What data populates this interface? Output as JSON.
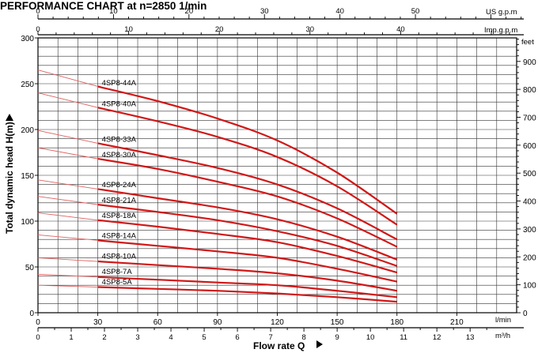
{
  "chart_data": {
    "type": "line",
    "title": "PERFORMANCE CHART at n=2850 1/min",
    "xlabel": "Flow rate Q",
    "ylabel": "Total dynamic head H(m)",
    "x_unit_primary": "l/min",
    "x_unit_secondary": "m³/h",
    "x_unit_top_us": "US g.p.m",
    "x_unit_top_imp": "Imp.g.p.m",
    "y_unit_right": "feet",
    "xlim": [
      0,
      240
    ],
    "ylim": [
      0,
      300
    ],
    "x_ticks_lmin": [
      0,
      30,
      60,
      90,
      120,
      150,
      180,
      210
    ],
    "x_ticks_m3h": [
      0,
      1,
      2,
      3,
      4,
      5,
      6,
      7,
      8,
      9,
      10,
      11,
      12,
      13
    ],
    "x_ticks_usgpm": [
      0,
      10,
      20,
      30,
      40,
      50
    ],
    "x_ticks_impgpm": [
      0,
      10,
      20,
      30,
      40
    ],
    "y_ticks_m": [
      0,
      50,
      100,
      150,
      200,
      250,
      300
    ],
    "y_ticks_feet": [
      0,
      100,
      200,
      300,
      400,
      500,
      600,
      700,
      800,
      900
    ],
    "grid": true,
    "series": [
      {
        "name": "4SP8-44A",
        "x": [
          0,
          30,
          60,
          90,
          120,
          150,
          180
        ],
        "y": [
          265,
          247,
          231,
          212,
          188,
          153,
          108
        ]
      },
      {
        "name": "4SP8-40A",
        "x": [
          0,
          30,
          60,
          90,
          120,
          150,
          180
        ],
        "y": [
          240,
          224,
          209,
          192,
          170,
          138,
          96
        ]
      },
      {
        "name": "4SP8-33A",
        "x": [
          0,
          30,
          60,
          90,
          120,
          150,
          180
        ],
        "y": [
          199,
          185,
          172,
          158,
          140,
          114,
          80
        ]
      },
      {
        "name": "4SP8-30A",
        "x": [
          0,
          30,
          60,
          90,
          120,
          150,
          180
        ],
        "y": [
          180,
          168,
          157,
          143,
          127,
          103,
          72
        ]
      },
      {
        "name": "4SP8-24A",
        "x": [
          0,
          30,
          60,
          90,
          120,
          150,
          180
        ],
        "y": [
          145,
          135,
          125,
          115,
          102,
          83,
          58
        ]
      },
      {
        "name": "4SP8-21A",
        "x": [
          0,
          30,
          60,
          90,
          120,
          150,
          180
        ],
        "y": [
          127,
          118,
          110,
          101,
          89,
          73,
          51
        ]
      },
      {
        "name": "4SP8-18A",
        "x": [
          0,
          30,
          60,
          90,
          120,
          150,
          180
        ],
        "y": [
          109,
          101,
          94,
          86,
          77,
          62,
          44
        ]
      },
      {
        "name": "4SP8-14A",
        "x": [
          0,
          30,
          60,
          90,
          120,
          150,
          180
        ],
        "y": [
          85,
          79,
          73,
          67,
          60,
          48,
          34
        ]
      },
      {
        "name": "4SP8-10A",
        "x": [
          0,
          30,
          60,
          90,
          120,
          150,
          180
        ],
        "y": [
          60,
          56,
          52,
          48,
          43,
          35,
          24
        ]
      },
      {
        "name": "4SP8-7A",
        "x": [
          0,
          30,
          60,
          90,
          120,
          150,
          180
        ],
        "y": [
          42,
          39,
          36,
          33,
          30,
          24,
          17
        ]
      },
      {
        "name": "4SP8-5A",
        "x": [
          0,
          30,
          60,
          90,
          120,
          150,
          180
        ],
        "y": [
          30,
          28,
          26,
          24,
          21,
          17,
          12
        ]
      }
    ],
    "colors": {
      "curve": "#d01818",
      "curve_ext": "#e06060",
      "grid": "#333333",
      "axis": "#000000"
    }
  }
}
